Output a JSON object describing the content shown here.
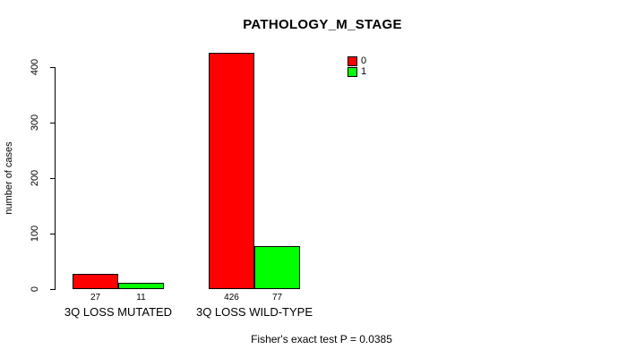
{
  "title": "PATHOLOGY_M_STAGE",
  "footer": "Fisher's exact test P = 0.0385",
  "colors": {
    "series_0": "#FF0000",
    "series_1": "#00FF00",
    "axis": "#000000",
    "background": "#FFFFFF"
  },
  "legend": {
    "items": [
      {
        "label": "0",
        "color": "#FF0000"
      },
      {
        "label": "1",
        "color": "#00FF00"
      }
    ]
  },
  "chart_data": {
    "type": "bar",
    "title": "PATHOLOGY_M_STAGE",
    "xlabel": "",
    "ylabel": "number of cases",
    "categories": [
      "3Q LOSS MUTATED",
      "3Q LOSS WILD-TYPE"
    ],
    "series": [
      {
        "name": "0",
        "color": "#FF0000",
        "values": [
          27,
          426
        ]
      },
      {
        "name": "1",
        "color": "#00FF00",
        "values": [
          11,
          77
        ]
      }
    ],
    "bar_value_labels": [
      [
        27,
        11
      ],
      [
        426,
        77
      ]
    ],
    "yticks": [
      0,
      100,
      200,
      300,
      400
    ],
    "ylim": [
      0,
      426
    ],
    "grid": false,
    "legend_position": "top-right",
    "annotation": "Fisher's exact test P = 0.0385"
  }
}
